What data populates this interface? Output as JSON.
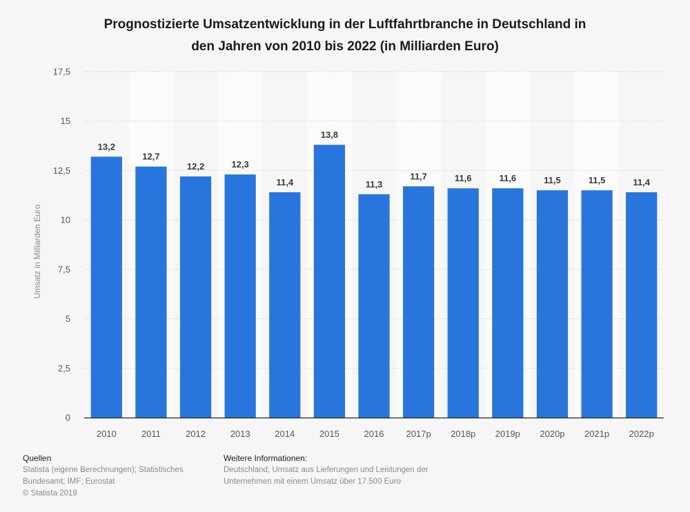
{
  "chart_data": {
    "type": "bar",
    "title": "Prognostizierte Umsatzentwicklung in der Luftfahrtbranche in Deutschland in den Jahren von 2010 bis 2022 (in Milliarden Euro)",
    "title_lines": [
      "Prognostizierte Umsatzentwicklung in der Luftfahrtbranche in Deutschland in",
      "den Jahren von 2010 bis 2022 (in Milliarden Euro)"
    ],
    "categories": [
      "2010",
      "2011",
      "2012",
      "2013",
      "2014",
      "2015",
      "2016",
      "2017p",
      "2018p",
      "2019p",
      "2020p",
      "2021p",
      "2022p"
    ],
    "values": [
      13.2,
      12.7,
      12.2,
      12.3,
      11.4,
      13.8,
      11.3,
      11.7,
      11.6,
      11.6,
      11.5,
      11.5,
      11.4
    ],
    "value_labels": [
      "13,2",
      "12,7",
      "12,2",
      "12,3",
      "11,4",
      "13,8",
      "11,3",
      "11,7",
      "11,6",
      "11,6",
      "11,5",
      "11,5",
      "11,4"
    ],
    "xlabel": "",
    "ylabel": "Umsatz in Milliarden Euro",
    "ylim": [
      0,
      17.5
    ],
    "yticks": [
      0,
      2.5,
      5,
      7.5,
      10,
      12.5,
      15,
      17.5
    ],
    "ytick_labels": [
      "0",
      "2,5",
      "5",
      "7,5",
      "10",
      "12,5",
      "15",
      "17,5"
    ],
    "grid": true,
    "bar_color": "#2876dd"
  },
  "footer": {
    "sources_heading": "Quellen",
    "sources_lines": [
      "Statista (eigene Berechnungen); Statistisches",
      "Bundesamt; IMF; Eurostat",
      "© Statista 2019"
    ],
    "info_heading": "Weitere Informationen:",
    "info_lines": [
      "Deutschland; Umsatz aus Lieferungen und Leistungen der",
      "Unternehmen mit einem Umsatz über 17.500 Euro"
    ]
  }
}
